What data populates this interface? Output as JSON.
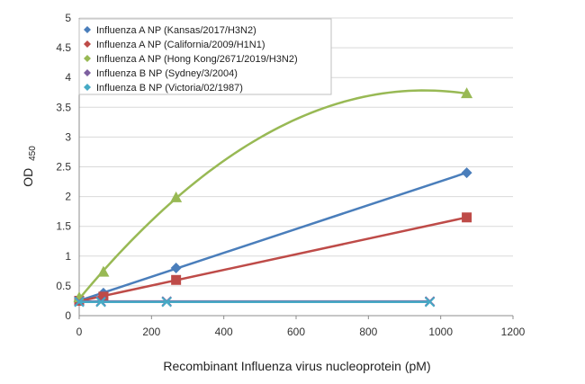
{
  "chart_data": {
    "type": "scatter",
    "xlabel": "Recombinant  Influenza virus nucleoprotein  (pM)",
    "ylabel": "OD",
    "ylabel_sub": "450",
    "xlim": [
      0,
      1200
    ],
    "ylim": [
      0,
      5
    ],
    "x_ticks": [
      "0",
      "200",
      "400",
      "600",
      "800",
      "1000",
      "1200"
    ],
    "y_ticks": [
      "0",
      "0.5",
      "1",
      "1.5",
      "2",
      "2.5",
      "3",
      "3.5",
      "4",
      "4.5",
      "5"
    ],
    "grid": "horizontal",
    "legend_position": "top-left",
    "series": [
      {
        "name": "Influenza A NP (Kansas/2017/H3N2)",
        "color": "#4a7ebb",
        "marker": "diamond",
        "fit": "linear",
        "x": [
          0,
          67,
          268,
          1072
        ],
        "y": [
          0.25,
          0.38,
          0.8,
          2.4
        ]
      },
      {
        "name": "Influenza A NP (California/2009/H1N1)",
        "color": "#be4b48",
        "marker": "square",
        "fit": "linear",
        "x": [
          0,
          67,
          268,
          1072
        ],
        "y": [
          0.25,
          0.32,
          0.6,
          1.65
        ]
      },
      {
        "name": "Influenza A NP (Hong Kong/2671/2019/H3N2)",
        "color": "#98b954",
        "marker": "triangle",
        "fit": "polynomial",
        "x": [
          0,
          67,
          268,
          1072
        ],
        "y": [
          0.3,
          0.73,
          1.98,
          3.73
        ]
      },
      {
        "name": "Influenza B NP (Sydney/3/2004)",
        "color": "#7d60a0",
        "marker": "x",
        "fit": "linear",
        "x": [
          0,
          60,
          242,
          970
        ],
        "y": [
          0.24,
          0.24,
          0.24,
          0.24
        ]
      },
      {
        "name": "Influenza B NP (Victoria/02/1987)",
        "color": "#46aac5",
        "marker": "x",
        "fit": "linear",
        "x": [
          0,
          60,
          242,
          970
        ],
        "y": [
          0.23,
          0.23,
          0.23,
          0.23
        ]
      }
    ]
  }
}
